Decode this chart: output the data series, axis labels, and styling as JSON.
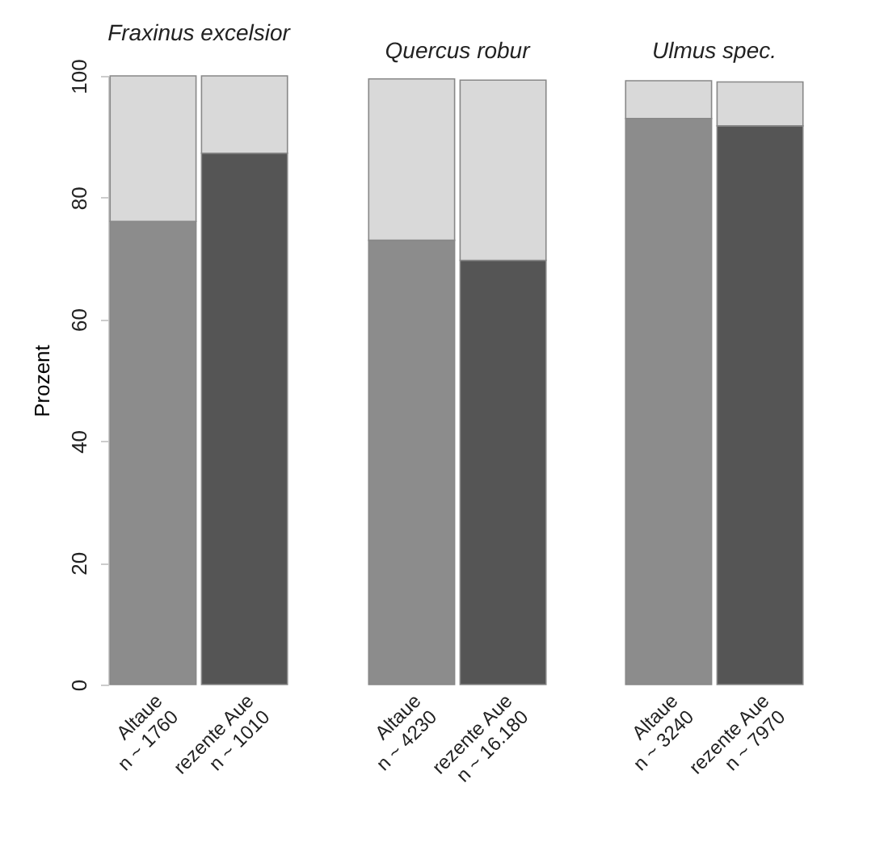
{
  "chart_data": [
    {
      "type": "bar",
      "stacked": true,
      "title": "Fraxinus excelsior",
      "ylabel": "Prozent",
      "categories": [
        "Altaue\nn ~ 1760",
        "rezente Aue\nn ~ 1010"
      ],
      "ylim": [
        0,
        100
      ],
      "yticks": [
        0,
        20,
        40,
        60,
        80,
        100
      ],
      "grid": false,
      "series": [
        {
          "colors": [
            "#8c8c8c",
            "#555555"
          ],
          "values": [
            76.1,
            87.3
          ]
        },
        {
          "color": "#d9d9d9",
          "values": [
            23.9,
            12.7
          ]
        }
      ]
    },
    {
      "type": "bar",
      "stacked": true,
      "title": "Quercus robur",
      "categories": [
        "Altaue\nn ~ 4230",
        "rezente Aue\nn ~ 16.180"
      ],
      "ylim": [
        0,
        100
      ],
      "tick_labels": "x",
      "grid": false,
      "series": [
        {
          "colors": [
            "#8c8c8c",
            "#555555"
          ],
          "values": [
            73.0,
            69.7
          ]
        },
        {
          "color": "#d9d9d9",
          "values": [
            26.5,
            29.6
          ]
        }
      ]
    },
    {
      "type": "bar",
      "stacked": true,
      "title": "Ulmus spec.",
      "categories": [
        "Altaue\nn ~ 3240",
        "rezente Aue\nn ~ 7970"
      ],
      "ylim": [
        0,
        100
      ],
      "tick_labels": "x",
      "grid": false,
      "series": [
        {
          "colors": [
            "#8c8c8c",
            "#555555"
          ],
          "values": [
            93.0,
            91.8
          ]
        },
        {
          "color": "#d9d9d9",
          "values": [
            6.2,
            7.2
          ]
        }
      ]
    }
  ]
}
